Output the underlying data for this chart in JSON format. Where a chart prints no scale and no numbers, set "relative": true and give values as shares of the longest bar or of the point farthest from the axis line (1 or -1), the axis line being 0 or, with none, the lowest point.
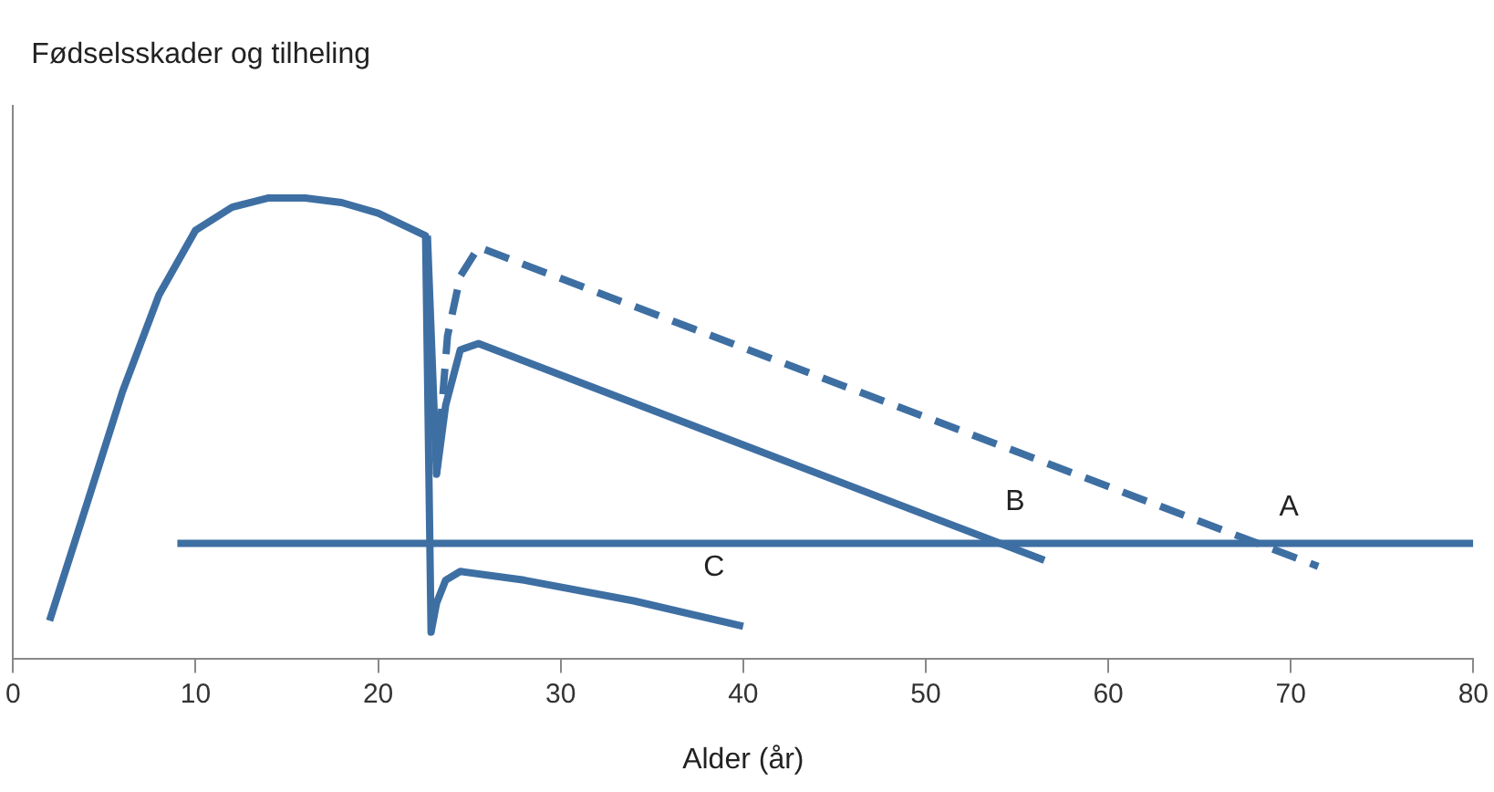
{
  "chart_data": {
    "type": "line",
    "relative": true,
    "ylabel": "Fødselsskader og tilheling",
    "xlabel": "Alder (år)",
    "xlim": [
      0,
      80
    ],
    "xticks": [
      0,
      10,
      20,
      30,
      40,
      50,
      60,
      70,
      80
    ],
    "grid": false,
    "legend": false,
    "marker": "none",
    "series": [
      {
        "name": "C",
        "color": "#3e6fa3",
        "line_style": "solid",
        "x": [
          2,
          4,
          6,
          8,
          10,
          12,
          14,
          16,
          18,
          20,
          22.6,
          22.9,
          23.2,
          23.7,
          24.5,
          28,
          34,
          40
        ],
        "values": [
          0.082,
          0.33,
          0.58,
          0.79,
          0.93,
          0.98,
          1,
          1,
          0.99,
          0.967,
          0.918,
          0.057,
          0.12,
          0.17,
          0.189,
          0.17,
          0.125,
          0.07
        ]
      },
      {
        "name": "B",
        "color": "#3e6fa3",
        "line_style": "solid",
        "x": [
          22.7,
          23.2,
          23.7,
          24.5,
          25.5,
          56.5
        ],
        "values": [
          0.918,
          0.4,
          0.55,
          0.67,
          0.684,
          0.213
        ]
      },
      {
        "name": "A",
        "color": "#3e6fa3",
        "line_style": "dashed",
        "x": [
          23.2,
          23.8,
          24.5,
          25.5,
          71.5
        ],
        "values": [
          0.4,
          0.7,
          0.83,
          0.893,
          0.2
        ]
      },
      {
        "color": "#3e6fa3",
        "line_style": "solid",
        "x": [
          9,
          80
        ],
        "values": [
          0.25,
          0.25
        ]
      }
    ]
  }
}
